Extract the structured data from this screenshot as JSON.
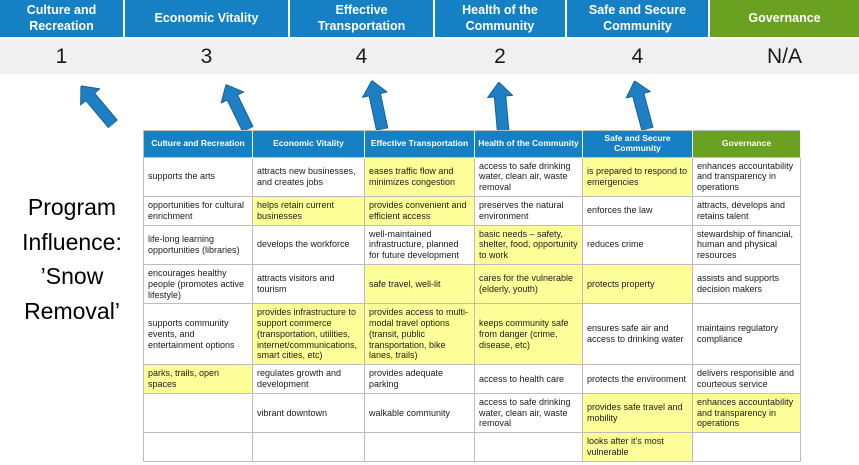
{
  "title": {
    "text": "Program Influence: ’Snow Removal’"
  },
  "scoreboard": {
    "columns": [
      {
        "label": "Culture and Recreation",
        "score": "1",
        "color": "#1581C4"
      },
      {
        "label": "Economic Vitality",
        "score": "3",
        "color": "#1581C4"
      },
      {
        "label": "Effective Transportation",
        "score": "4",
        "color": "#1581C4"
      },
      {
        "label": "Health of the Community",
        "score": "2",
        "color": "#1581C4"
      },
      {
        "label": "Safe and Secure Community",
        "score": "4",
        "color": "#1581C4"
      },
      {
        "label": "Governance",
        "score": "N/A",
        "color": "#6AA121"
      }
    ]
  },
  "arrows": {
    "icon": "up-arrow",
    "count": 5,
    "color": "#1E7FC4"
  },
  "colors": {
    "header_blue": "#1581C4",
    "header_green": "#6AA121",
    "highlight_yellow": "#FFFF99",
    "score_band_gray": "#F0F0F0",
    "grid_line": "#BDBDBD",
    "arrow_blue": "#1E7FC4"
  },
  "matrix": {
    "headers": [
      {
        "label": "Culture and Recreation",
        "theme": "blue"
      },
      {
        "label": "Economic Vitality",
        "theme": "blue"
      },
      {
        "label": "Effective Transportation",
        "theme": "blue"
      },
      {
        "label": "Health of the Community",
        "theme": "blue"
      },
      {
        "label": "Safe and Secure Community",
        "theme": "blue"
      },
      {
        "label": "Governance",
        "theme": "green"
      }
    ],
    "rows": [
      [
        {
          "text": "supports the arts",
          "hl": false
        },
        {
          "text": "attracts new businesses, and creates jobs",
          "hl": false
        },
        {
          "text": "eases traffic flow and minimizes congestion",
          "hl": true
        },
        {
          "text": "access to safe drinking water, clean air, waste removal",
          "hl": false
        },
        {
          "text": "is prepared to respond to emergencies",
          "hl": true
        },
        {
          "text": "enhances accountability and transparency in operations",
          "hl": false
        }
      ],
      [
        {
          "text": "opportunities for cultural enrichment",
          "hl": false
        },
        {
          "text": "helps retain current businesses",
          "hl": true
        },
        {
          "text": "provides convenient and efficient access",
          "hl": true
        },
        {
          "text": "preserves the natural environment",
          "hl": false
        },
        {
          "text": "enforces the law",
          "hl": false
        },
        {
          "text": "attracts, develops and retains talent",
          "hl": false
        }
      ],
      [
        {
          "text": "life-long learning opportunities (libraries)",
          "hl": false
        },
        {
          "text": "develops the workforce",
          "hl": false
        },
        {
          "text": "well-maintained infrastructure, planned for future development",
          "hl": false
        },
        {
          "text": "basic needs – safety, shelter, food, opportunity to work",
          "hl": true
        },
        {
          "text": "reduces crime",
          "hl": false
        },
        {
          "text": "stewardship of financial, human and physical resources",
          "hl": false
        }
      ],
      [
        {
          "text": "encourages healthy people (promotes active lifestyle)",
          "hl": false
        },
        {
          "text": "attracts visitors and tourism",
          "hl": false
        },
        {
          "text": "safe travel, well-lit",
          "hl": true
        },
        {
          "text": "cares for the vulnerable (elderly, youth)",
          "hl": true
        },
        {
          "text": "protects property",
          "hl": true
        },
        {
          "text": "assists and supports decision makers",
          "hl": false
        }
      ],
      [
        {
          "text": "supports community events, and entertainment options",
          "hl": false
        },
        {
          "text": "provides infrastructure to support commerce (transportation, utilities, internet/communications, smart cities, etc)",
          "hl": true
        },
        {
          "text": "provides access to multi-modal travel options (transit, public transportation, bike lanes, trails)",
          "hl": true
        },
        {
          "text": "keeps community safe from danger (crime, disease, etc)",
          "hl": true
        },
        {
          "text": "ensures safe air and access to drinking water",
          "hl": false
        },
        {
          "text": "maintains regulatory compliance",
          "hl": false
        }
      ],
      [
        {
          "text": "parks, trails, open spaces",
          "hl": true
        },
        {
          "text": "regulates growth and development",
          "hl": false
        },
        {
          "text": "provides adequate parking",
          "hl": false
        },
        {
          "text": "access to health care",
          "hl": false
        },
        {
          "text": "protects the environment",
          "hl": false
        },
        {
          "text": "delivers responsible and courteous service",
          "hl": false
        }
      ],
      [
        {
          "text": "",
          "hl": false
        },
        {
          "text": "vibrant downtown",
          "hl": false
        },
        {
          "text": "walkable community",
          "hl": false
        },
        {
          "text": "access to safe drinking water, clean air, waste removal",
          "hl": false
        },
        {
          "text": "provides safe travel and mobility",
          "hl": true
        },
        {
          "text": "enhances accountability and transparency in operations",
          "hl": true
        }
      ],
      [
        {
          "text": "",
          "hl": false
        },
        {
          "text": "",
          "hl": false
        },
        {
          "text": "",
          "hl": false
        },
        {
          "text": "",
          "hl": false
        },
        {
          "text": "looks after it's most vulnerable",
          "hl": true
        },
        {
          "text": "",
          "hl": false
        }
      ]
    ]
  }
}
